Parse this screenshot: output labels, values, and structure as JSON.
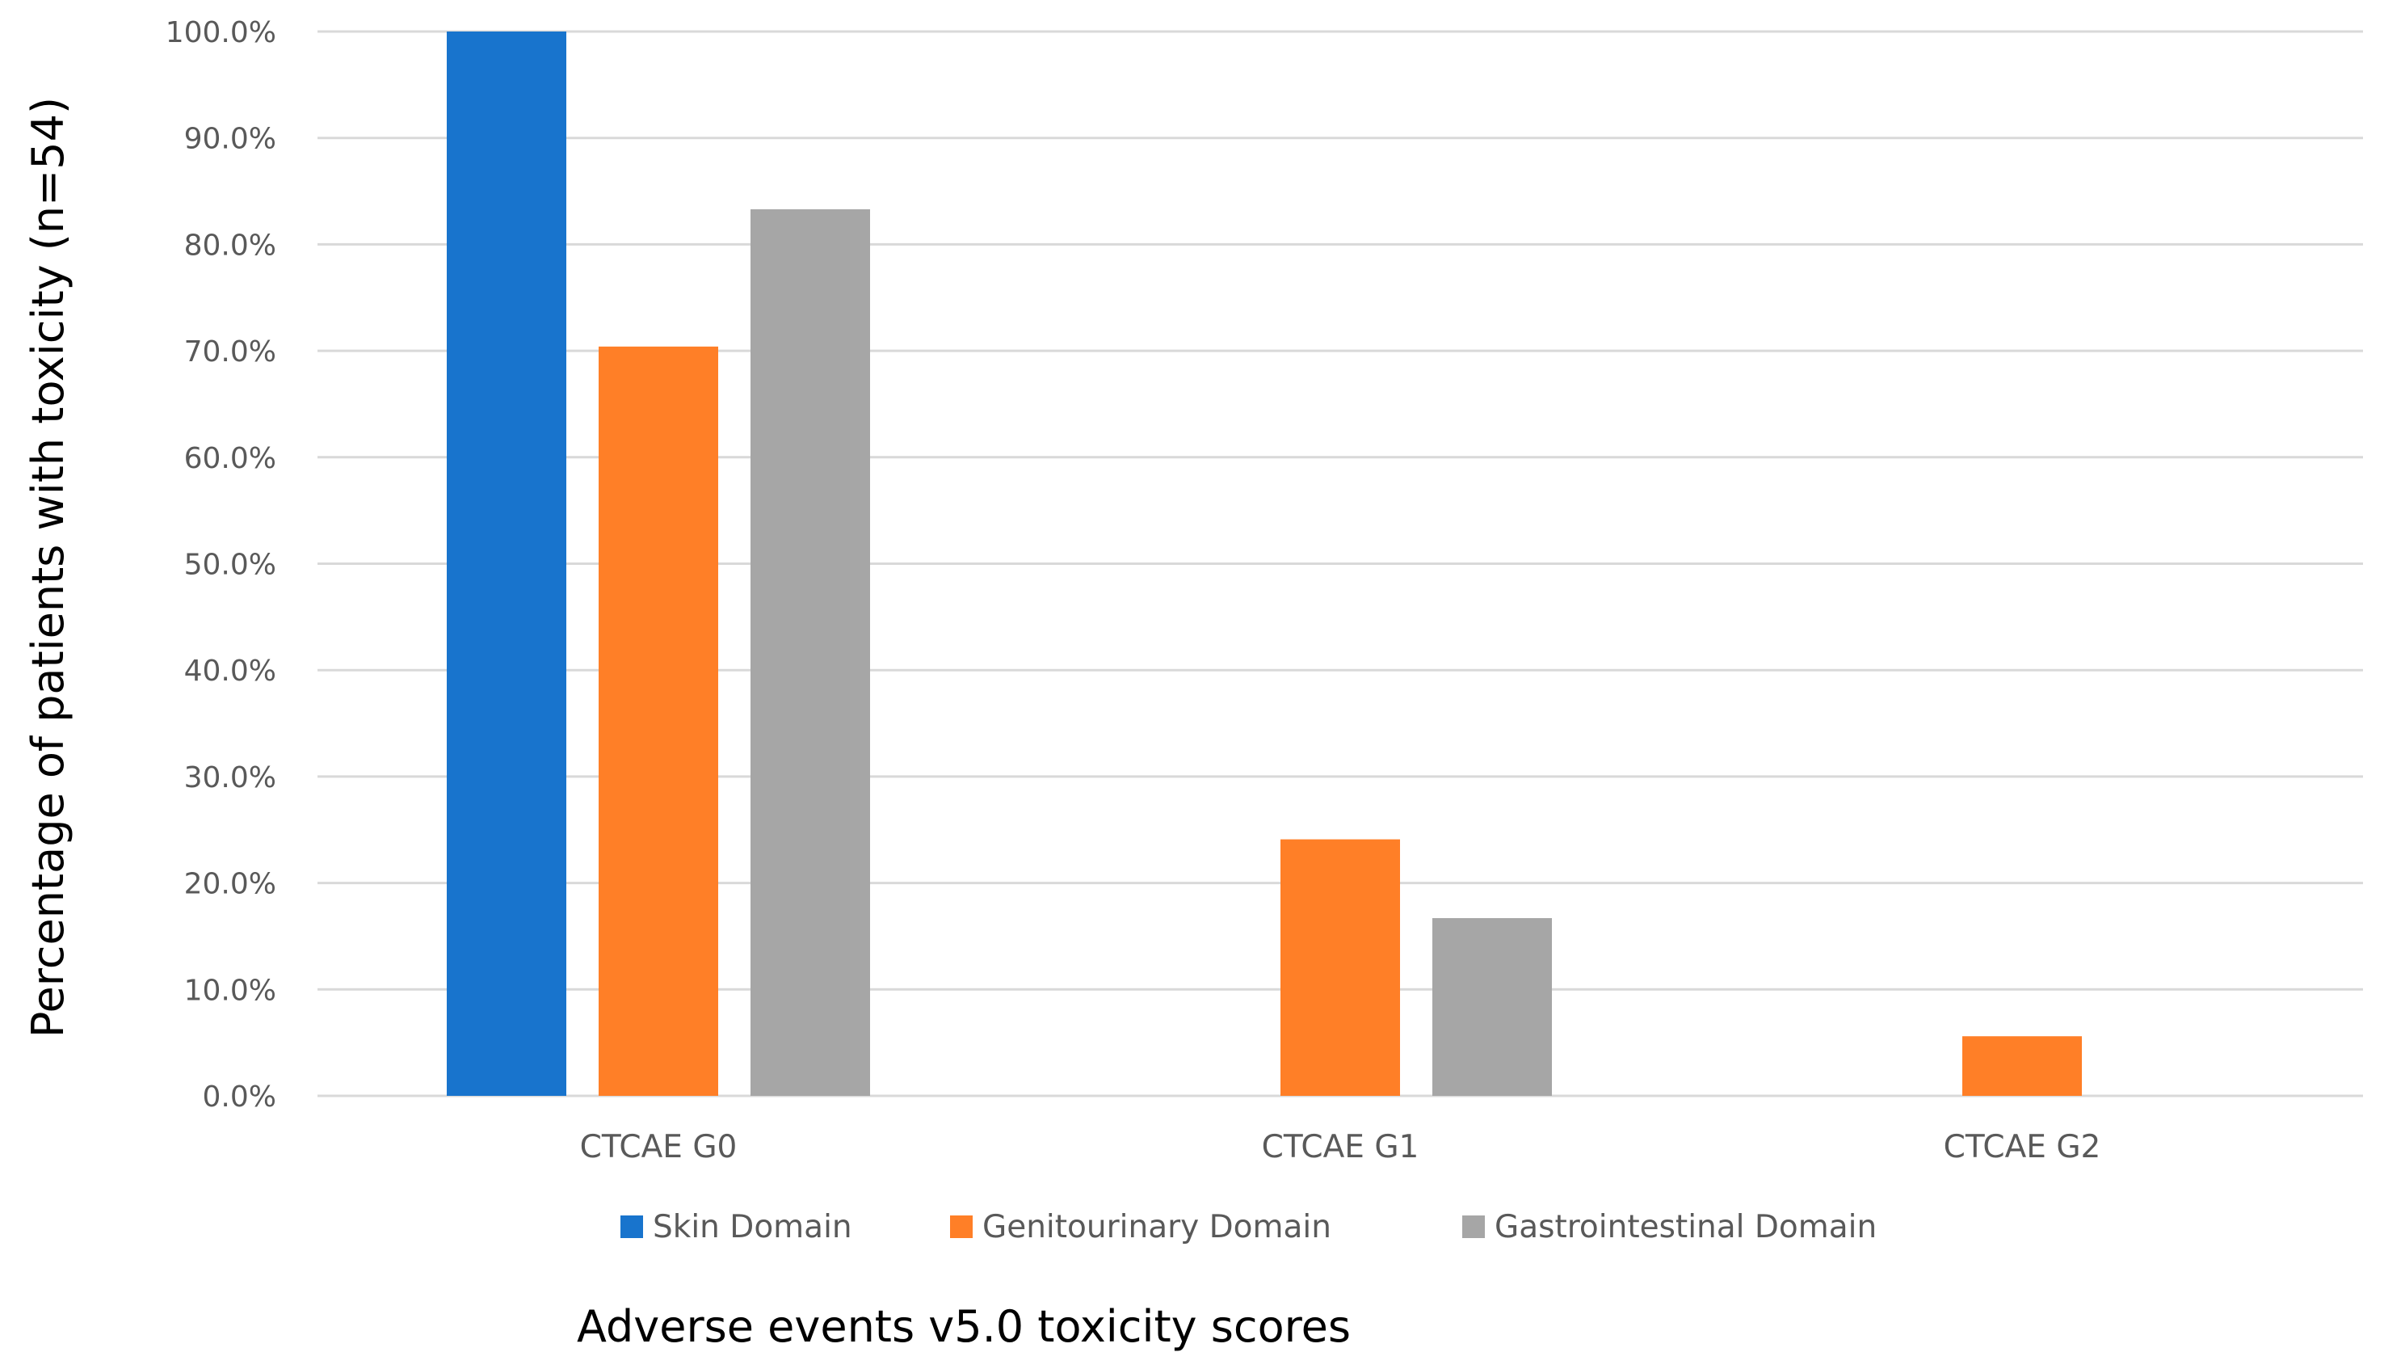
{
  "chart_data": {
    "type": "bar",
    "title": "",
    "xlabel": "Adverse events v5.0 toxicity scores",
    "ylabel": "Percentage of patients with toxicity (n=54)",
    "ylim": [
      0,
      100
    ],
    "y_ticks": [
      "0.0%",
      "10.0%",
      "20.0%",
      "30.0%",
      "40.0%",
      "50.0%",
      "60.0%",
      "70.0%",
      "80.0%",
      "90.0%",
      "100.0%"
    ],
    "categories": [
      "CTCAE G0",
      "CTCAE G1",
      "CTCAE G2"
    ],
    "series": [
      {
        "name": "Skin Domain",
        "color": "#1874CD",
        "values": [
          100.0,
          0.0,
          0.0
        ]
      },
      {
        "name": "Genitourinary Domain",
        "color": "#FF7F27",
        "values": [
          70.4,
          24.1,
          5.6
        ]
      },
      {
        "name": "Gastrointestinal Domain",
        "color": "#A6A6A6",
        "values": [
          83.3,
          16.7,
          0.0
        ]
      }
    ],
    "grid": true,
    "legend_position": "bottom"
  }
}
